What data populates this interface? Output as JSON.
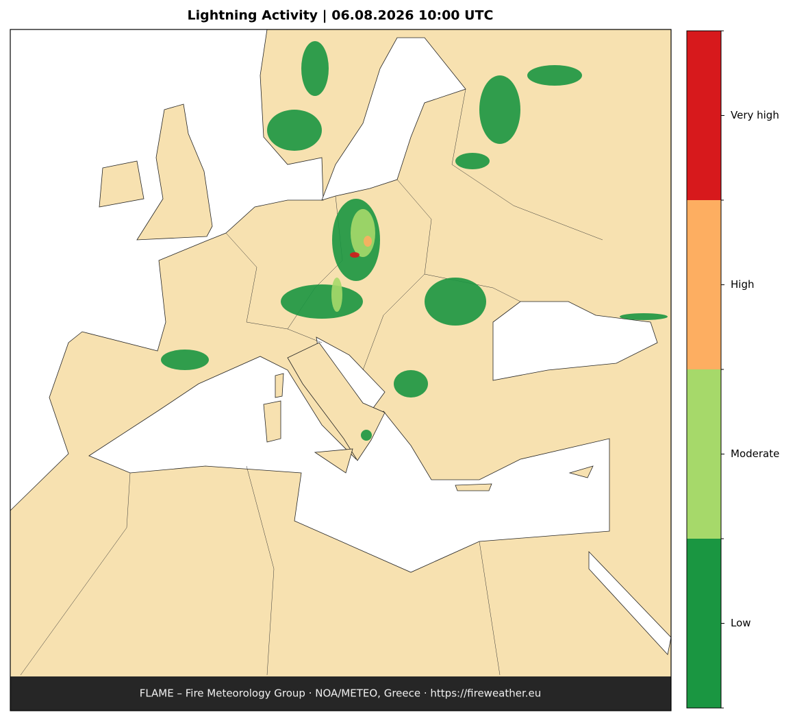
{
  "title": "Lightning Activity  |  06.08.2026 10:00 UTC",
  "footer": "FLAME – Fire Meteorology Group · NOA/METEO, Greece · https://fireweather.eu",
  "legend": {
    "items": [
      {
        "label": "Low",
        "color": "#1a9641"
      },
      {
        "label": "Moderate",
        "color": "#a6d96a"
      },
      {
        "label": "High",
        "color": "#fdae61"
      },
      {
        "label": "Very high",
        "color": "#d7191c"
      }
    ]
  }
}
